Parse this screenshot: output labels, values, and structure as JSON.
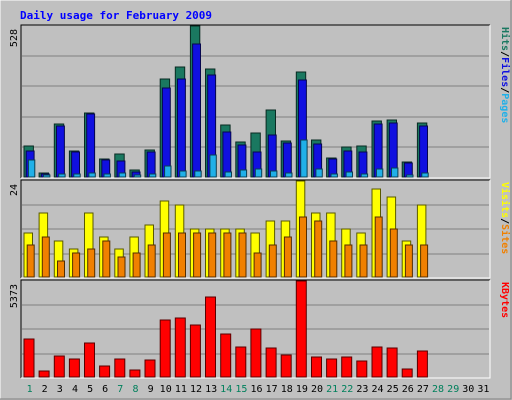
{
  "chart_data": [
    {
      "type": "bar",
      "title": "Daily usage for February 2009",
      "ylabel_parts": [
        "Pages",
        "/",
        "Files",
        "/",
        "Hits"
      ],
      "ymax_label": "528",
      "ylim": [
        0,
        528
      ],
      "categories": [
        "1",
        "2",
        "3",
        "4",
        "5",
        "6",
        "7",
        "8",
        "9",
        "10",
        "11",
        "12",
        "13",
        "14",
        "15",
        "16",
        "17",
        "18",
        "19",
        "20",
        "21",
        "22",
        "23",
        "24",
        "25",
        "26",
        "27",
        "28",
        "29",
        "30",
        "31"
      ],
      "weekend_days": [
        "1",
        "7",
        "8",
        "14",
        "15",
        "21",
        "22",
        "28",
        "29"
      ],
      "series": [
        {
          "name": "Hits",
          "color": "#128758",
          "values": [
            108,
            14,
            184,
            92,
            225,
            63,
            79,
            25,
            96,
            343,
            385,
            528,
            378,
            182,
            122,
            154,
            235,
            127,
            367,
            128,
            66,
            104,
            110,
            196,
            200,
            52,
            189,
            0,
            0,
            0,
            0
          ]
        },
        {
          "name": "Files",
          "color": "#1010e8",
          "values": [
            92,
            10,
            177,
            88,
            219,
            59,
            56,
            18,
            88,
            310,
            344,
            465,
            355,
            157,
            111,
            88,
            147,
            120,
            340,
            117,
            62,
            92,
            89,
            184,
            190,
            48,
            177,
            0,
            0,
            0,
            0
          ]
        },
        {
          "name": "Pages",
          "color": "#1eb4e6",
          "values": [
            58,
            7,
            12,
            10,
            15,
            12,
            13,
            7,
            10,
            38,
            22,
            20,
            78,
            17,
            25,
            27,
            20,
            15,
            130,
            27,
            12,
            17,
            10,
            27,
            31,
            8,
            15,
            0,
            0,
            0,
            0
          ]
        }
      ]
    },
    {
      "type": "bar",
      "ylabel_parts": [
        "Sites",
        "/",
        "Visits"
      ],
      "ymax_label": "24",
      "ylim": [
        0,
        24
      ],
      "categories": [
        "1",
        "2",
        "3",
        "4",
        "5",
        "6",
        "7",
        "8",
        "9",
        "10",
        "11",
        "12",
        "13",
        "14",
        "15",
        "16",
        "17",
        "18",
        "19",
        "20",
        "21",
        "22",
        "23",
        "24",
        "25",
        "26",
        "27",
        "28",
        "29",
        "30",
        "31"
      ],
      "series": [
        {
          "name": "Visits",
          "color": "#ffff00",
          "values": [
            11,
            16,
            9,
            7,
            16,
            10,
            7,
            10,
            13,
            19,
            18,
            12,
            12,
            12,
            12,
            11,
            14,
            14,
            24,
            16,
            16,
            12,
            11,
            22,
            20,
            9,
            18,
            0,
            0,
            0,
            0
          ]
        },
        {
          "name": "Sites",
          "color": "#ff8c00",
          "values": [
            8,
            10,
            4,
            6,
            7,
            9,
            5,
            6,
            8,
            11,
            11,
            11,
            11,
            11,
            11,
            6,
            8,
            10,
            15,
            14,
            9,
            8,
            8,
            15,
            12,
            8,
            8,
            0,
            0,
            0,
            0
          ]
        }
      ]
    },
    {
      "type": "bar",
      "ylabel_parts": [
        "KBytes"
      ],
      "ymax_label": "5373",
      "ylim": [
        0,
        5373
      ],
      "categories": [
        "1",
        "2",
        "3",
        "4",
        "5",
        "6",
        "7",
        "8",
        "9",
        "10",
        "11",
        "12",
        "13",
        "14",
        "15",
        "16",
        "17",
        "18",
        "19",
        "20",
        "21",
        "22",
        "23",
        "24",
        "25",
        "26",
        "27",
        "28",
        "29",
        "30",
        "31"
      ],
      "series": [
        {
          "name": "KBytes",
          "color": "#ff0000",
          "values": [
            2116,
            335,
            1200,
            994,
            1895,
            606,
            994,
            388,
            945,
            3170,
            3285,
            2899,
            4491,
            2406,
            1701,
            2680,
            1628,
            1249,
            5373,
            1147,
            1001,
            1139,
            915,
            1686,
            1648,
            437,
            1472,
            0,
            0,
            0,
            0
          ]
        }
      ]
    }
  ],
  "colors": {
    "frame_bg": "#c0c0c0",
    "plot_bg": "#c0c0c0",
    "title_color": "#0000ff",
    "weekday_label": "#000000",
    "weekend_label": "#00805c",
    "slash_color": "#000000"
  }
}
